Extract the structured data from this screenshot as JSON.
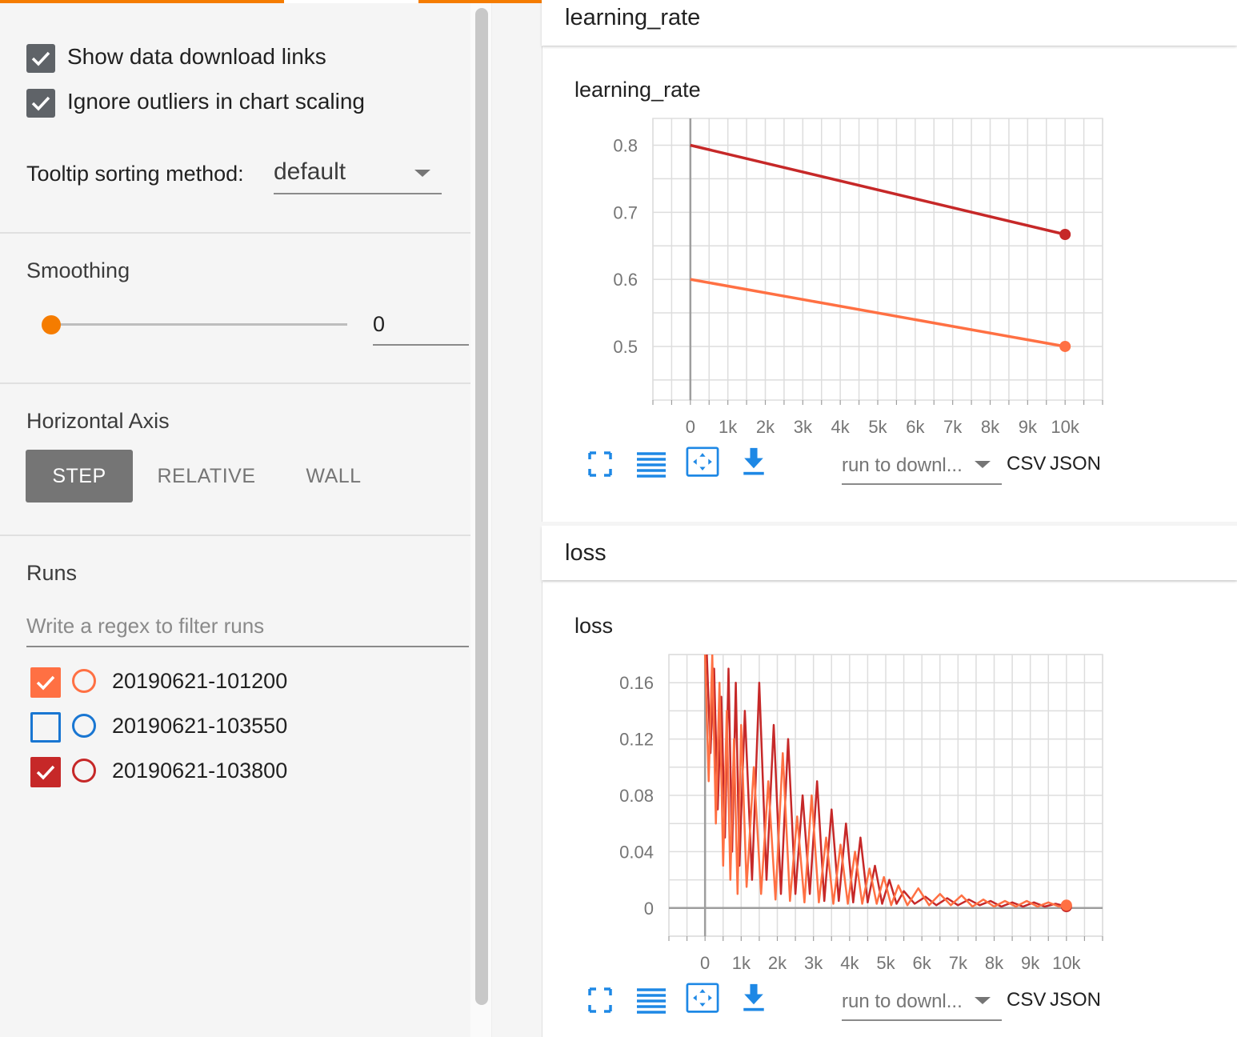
{
  "colors": {
    "accent": "#f57c00",
    "run1": "#ff7043",
    "run2": "#1976d2",
    "run3": "#c62828",
    "icon": "#1e88e5"
  },
  "options": {
    "show_download_label": "Show data download links",
    "show_download_checked": true,
    "ignore_outliers_label": "Ignore outliers in chart scaling",
    "ignore_outliers_checked": true,
    "tooltip_label": "Tooltip sorting method:",
    "tooltip_value": "default"
  },
  "smoothing": {
    "title": "Smoothing",
    "value": "0",
    "level": 0
  },
  "horizontal_axis": {
    "title": "Horizontal Axis",
    "options": [
      "STEP",
      "RELATIVE",
      "WALL"
    ],
    "selected": "STEP"
  },
  "runs": {
    "title": "Runs",
    "filter_placeholder": "Write a regex to filter runs",
    "items": [
      {
        "name": "20190621-101200",
        "checked": true,
        "color": "#ff7043"
      },
      {
        "name": "20190621-103550",
        "checked": false,
        "color": "#1976d2"
      },
      {
        "name": "20190621-103800",
        "checked": true,
        "color": "#c62828"
      }
    ]
  },
  "cards": [
    {
      "header": "learning_rate",
      "chart_title": "learning_rate",
      "download_placeholder": "run to downl...",
      "csv_label": "CSV",
      "json_label": "JSON"
    },
    {
      "header": "loss",
      "chart_title": "loss",
      "download_placeholder": "run to downl...",
      "csv_label": "CSV",
      "json_label": "JSON"
    }
  ],
  "chart_data": [
    {
      "type": "line",
      "title": "learning_rate",
      "xlabel": "",
      "ylabel": "",
      "xlim": [
        -1000,
        11000
      ],
      "ylim": [
        0.42,
        0.84
      ],
      "x_ticks": [
        0,
        1000,
        2000,
        3000,
        4000,
        5000,
        6000,
        7000,
        8000,
        9000,
        10000
      ],
      "x_tick_labels": [
        "0",
        "1k",
        "2k",
        "3k",
        "4k",
        "5k",
        "6k",
        "7k",
        "8k",
        "9k",
        "10k"
      ],
      "y_ticks": [
        0.5,
        0.6,
        0.7,
        0.8
      ],
      "y_tick_labels": [
        "0.5",
        "0.6",
        "0.7",
        "0.8"
      ],
      "grid": true,
      "series": [
        {
          "name": "20190621-103800",
          "color": "#c62828",
          "x": [
            0,
            10000
          ],
          "y": [
            0.8,
            0.667
          ]
        },
        {
          "name": "20190621-101200",
          "color": "#ff7043",
          "x": [
            0,
            10000
          ],
          "y": [
            0.6,
            0.5
          ]
        }
      ]
    },
    {
      "type": "line",
      "title": "loss",
      "xlabel": "",
      "ylabel": "",
      "xlim": [
        -1000,
        11000
      ],
      "ylim": [
        -0.02,
        0.18
      ],
      "x_ticks": [
        0,
        1000,
        2000,
        3000,
        4000,
        5000,
        6000,
        7000,
        8000,
        9000,
        10000
      ],
      "x_tick_labels": [
        "0",
        "1k",
        "2k",
        "3k",
        "4k",
        "5k",
        "6k",
        "7k",
        "8k",
        "9k",
        "10k"
      ],
      "y_ticks": [
        0,
        0.04,
        0.08,
        0.12,
        0.16
      ],
      "y_tick_labels": [
        "0",
        "0.04",
        "0.08",
        "0.12",
        "0.16"
      ],
      "grid": true,
      "series": [
        {
          "name": "20190621-103800",
          "color": "#c62828",
          "x": [
            50,
            150,
            250,
            350,
            450,
            550,
            650,
            750,
            850,
            950,
            1100,
            1300,
            1500,
            1700,
            1900,
            2100,
            2300,
            2500,
            2700,
            2900,
            3100,
            3300,
            3500,
            3700,
            3900,
            4100,
            4300,
            4500,
            4700,
            4900,
            5100,
            5300,
            5500,
            5800,
            6100,
            6400,
            6700,
            7000,
            7300,
            7600,
            7900,
            8200,
            8500,
            8800,
            9100,
            9400,
            9700,
            10000
          ],
          "y": [
            0.18,
            0.11,
            0.17,
            0.07,
            0.15,
            0.05,
            0.17,
            0.04,
            0.16,
            0.03,
            0.14,
            0.02,
            0.16,
            0.02,
            0.13,
            0.01,
            0.12,
            0.01,
            0.08,
            0.01,
            0.09,
            0.005,
            0.07,
            0.005,
            0.06,
            0.004,
            0.05,
            0.004,
            0.03,
            0.003,
            0.02,
            0.003,
            0.012,
            0.003,
            0.008,
            0.002,
            0.007,
            0.002,
            0.006,
            0.002,
            0.005,
            0.001,
            0.004,
            0.001,
            0.004,
            0.001,
            0.003,
            0.001
          ]
        },
        {
          "name": "20190621-101200",
          "color": "#ff7043",
          "x": [
            0,
            100,
            200,
            300,
            400,
            500,
            600,
            700,
            800,
            900,
            1000,
            1150,
            1350,
            1550,
            1750,
            1950,
            2150,
            2350,
            2550,
            2750,
            2950,
            3150,
            3350,
            3550,
            3750,
            3950,
            4150,
            4350,
            4550,
            4750,
            4950,
            5150,
            5350,
            5600,
            5900,
            6200,
            6500,
            6800,
            7100,
            7400,
            7700,
            8000,
            8300,
            8600,
            8900,
            9200,
            9500,
            9800,
            10000
          ],
          "y": [
            0.18,
            0.09,
            0.18,
            0.06,
            0.16,
            0.03,
            0.14,
            0.02,
            0.12,
            0.01,
            0.13,
            0.015,
            0.1,
            0.01,
            0.09,
            0.006,
            0.11,
            0.005,
            0.065,
            0.004,
            0.08,
            0.004,
            0.05,
            0.003,
            0.045,
            0.003,
            0.04,
            0.003,
            0.028,
            0.003,
            0.022,
            0.002,
            0.016,
            0.002,
            0.014,
            0.002,
            0.01,
            0.002,
            0.009,
            0.001,
            0.006,
            0.001,
            0.005,
            0.001,
            0.005,
            0.001,
            0.004,
            0.001,
            0.002
          ]
        }
      ]
    }
  ]
}
